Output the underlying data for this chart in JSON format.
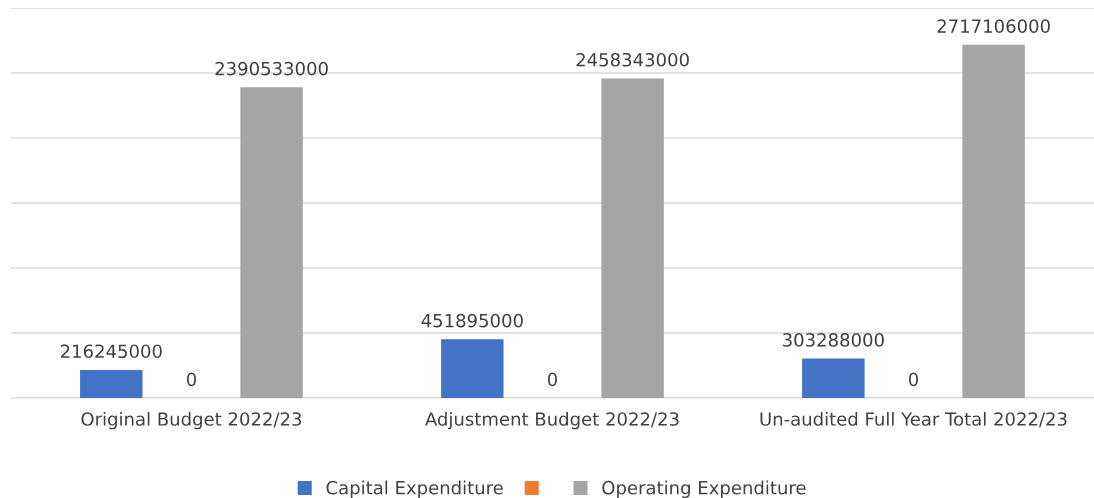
{
  "chart_data": {
    "type": "bar",
    "categories": [
      "Original Budget 2022/23",
      "Adjustment Budget 2022/23",
      "Un-audited Full Year Total 2022/23"
    ],
    "series": [
      {
        "name": "Capital Expenditure",
        "color": "#4472c4",
        "values": [
          216245000,
          451895000,
          303288000
        ]
      },
      {
        "color": "#ed7d31",
        "values": [
          0,
          0,
          0
        ]
      },
      {
        "name": "Operating Expenditure",
        "color": "#a5a5a5",
        "values": [
          2390533000,
          2458343000,
          2717106000
        ]
      }
    ],
    "ylim": [
      0,
      3000000000
    ],
    "yticks": [
      {
        "value": 0,
        "label": null
      },
      {
        "value": 500000000,
        "label": null
      },
      {
        "value": 1000000000,
        "label": null
      },
      {
        "value": 1500000000,
        "label": null
      },
      {
        "value": 2000000000,
        "label": null
      },
      {
        "value": 2500000000,
        "label": null
      },
      {
        "value": 3000000000,
        "label": null
      }
    ],
    "tick_labels": "x",
    "grid": "y",
    "legend": "bottom",
    "data_labels": true
  }
}
